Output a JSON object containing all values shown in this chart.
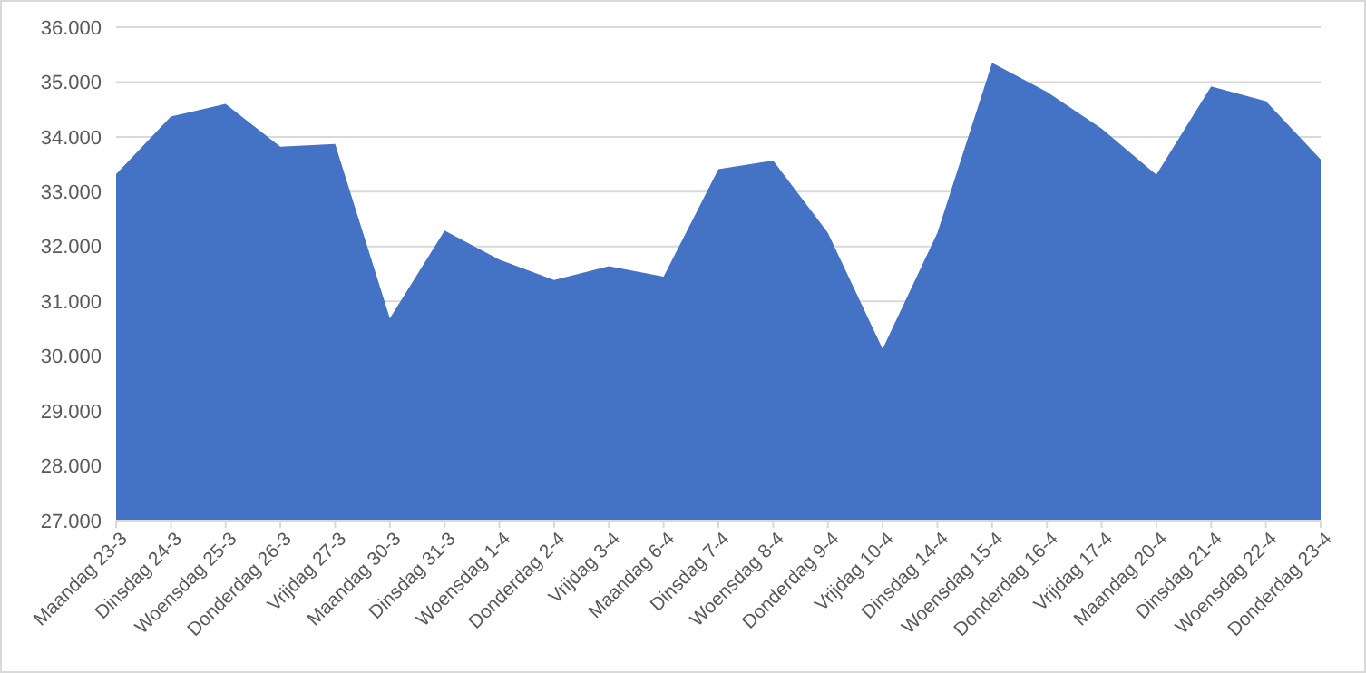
{
  "chart_data": {
    "type": "area",
    "categories": [
      "Maandag 23-3",
      "Dinsdag 24-3",
      "Woensdag 25-3",
      "Donderdag 26-3",
      "Vrijdag 27-3",
      "Maandag 30-3",
      "Dinsdag 31-3",
      "Woensdag 1-4",
      "Donderdag 2-4",
      "Vrijdag 3-4",
      "Maandag 6-4",
      "Dinsdag 7-4",
      "Woensdag 8-4",
      "Donderdag 9-4",
      "Vrijdag 10-4",
      "Dinsdag 14-4",
      "Woensdag 15-4",
      "Donderdag 16-4",
      "Vrijdag 17-4",
      "Maandag 20-4",
      "Dinsdag 21-4",
      "Woensdag 22-4",
      "Donderdag 23-4"
    ],
    "series": [
      {
        "color": "#4472c4",
        "values": [
          33320,
          34370,
          34600,
          33820,
          33870,
          30690,
          32290,
          31760,
          31390,
          31640,
          31450,
          33410,
          33570,
          32250,
          30130,
          32250,
          35350,
          34820,
          34150,
          33310,
          34920,
          34650,
          33590
        ]
      }
    ],
    "ylim": [
      27000,
      36000
    ],
    "yticks": [
      {
        "value": 27000,
        "label": "27.000"
      },
      {
        "value": 28000,
        "label": "28.000"
      },
      {
        "value": 29000,
        "label": "29.000"
      },
      {
        "value": 30000,
        "label": "30.000"
      },
      {
        "value": 31000,
        "label": "31.000"
      },
      {
        "value": 32000,
        "label": "32.000"
      },
      {
        "value": 33000,
        "label": "33.000"
      },
      {
        "value": 34000,
        "label": "34.000"
      },
      {
        "value": 35000,
        "label": "35.000"
      },
      {
        "value": 36000,
        "label": "36.000"
      }
    ],
    "grid": "y"
  }
}
